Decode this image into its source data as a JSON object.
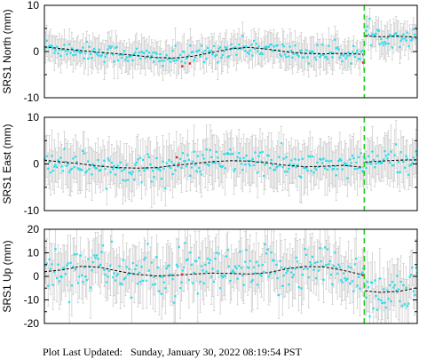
{
  "footer": {
    "label": "Plot Last Updated:",
    "timestamp": "Sunday, January 30, 2022 08:19:54 PST"
  },
  "colors": {
    "data_points": "#22e0f0",
    "outliers": "#dd2222",
    "error_bars": "#c8c8c8",
    "model_line": "#000000",
    "event_marker": "#22cc22"
  },
  "chart_data": [
    {
      "type": "scatter",
      "ylabel": "SRS1 North (mm)",
      "ylim": [
        -10,
        10
      ],
      "yticks": [
        -10,
        0,
        10
      ],
      "grid": false,
      "x_span": [
        0,
        1
      ],
      "event_x": 0.858,
      "series": [
        {
          "role": "model",
          "x": [
            0.0,
            0.05,
            0.1,
            0.15,
            0.2,
            0.25,
            0.3,
            0.35,
            0.4,
            0.45,
            0.5,
            0.55,
            0.6,
            0.65,
            0.7,
            0.75,
            0.8,
            0.855
          ],
          "values": [
            1.0,
            0.6,
            0.2,
            -0.2,
            -0.5,
            -0.9,
            -1.3,
            -1.4,
            -1.0,
            -0.2,
            0.6,
            0.9,
            0.5,
            -0.1,
            -0.4,
            -0.5,
            -0.4,
            -0.6
          ]
        },
        {
          "role": "model",
          "x": [
            0.86,
            0.9,
            0.95,
            1.0
          ],
          "values": [
            3.4,
            3.2,
            3.3,
            3.1
          ]
        }
      ],
      "outliers": [
        {
          "x": 0.37,
          "y": -3.2
        },
        {
          "x": 0.39,
          "y": -2.6
        },
        {
          "x": 0.855,
          "y": -2.4
        }
      ],
      "scatter": {
        "noise_sd": 1.0,
        "error_bar": 3.0
      }
    },
    {
      "type": "scatter",
      "ylabel": "SRS1 East (mm)",
      "ylim": [
        -10,
        10
      ],
      "yticks": [
        -10,
        0,
        10
      ],
      "grid": false,
      "x_span": [
        0,
        1
      ],
      "event_x": 0.858,
      "series": [
        {
          "role": "model",
          "x": [
            0.0,
            0.05,
            0.1,
            0.15,
            0.2,
            0.25,
            0.3,
            0.35,
            0.4,
            0.45,
            0.5,
            0.55,
            0.6,
            0.65,
            0.7,
            0.75,
            0.8,
            0.855
          ],
          "values": [
            0.8,
            0.4,
            0.0,
            -0.5,
            -0.8,
            -0.9,
            -0.8,
            -0.3,
            0.1,
            0.5,
            0.7,
            0.6,
            0.2,
            -0.3,
            -0.6,
            -0.5,
            -0.3,
            -0.7
          ]
        },
        {
          "role": "model",
          "x": [
            0.86,
            0.9,
            0.95,
            1.0
          ],
          "values": [
            0.4,
            0.6,
            0.8,
            0.9
          ]
        }
      ],
      "outliers": [
        {
          "x": 0.355,
          "y": 1.4
        },
        {
          "x": 0.36,
          "y": -0.2
        }
      ],
      "scatter": {
        "noise_sd": 1.4,
        "error_bar": 4.5
      }
    },
    {
      "type": "scatter",
      "ylabel": "SRS1 Up (mm)",
      "ylim": [
        -20,
        20
      ],
      "yticks": [
        -20,
        -10,
        0,
        10,
        20
      ],
      "grid": false,
      "x_span": [
        0,
        1
      ],
      "event_x": 0.858,
      "series": [
        {
          "role": "model",
          "x": [
            0.0,
            0.05,
            0.1,
            0.15,
            0.2,
            0.25,
            0.3,
            0.35,
            0.4,
            0.45,
            0.5,
            0.55,
            0.6,
            0.65,
            0.7,
            0.75,
            0.8,
            0.855
          ],
          "values": [
            2.0,
            2.8,
            4.3,
            3.8,
            2.2,
            0.8,
            0.2,
            0.4,
            1.0,
            1.4,
            1.2,
            1.0,
            1.6,
            3.2,
            4.2,
            4.0,
            2.6,
            0.6
          ]
        },
        {
          "role": "model",
          "x": [
            0.86,
            0.9,
            0.95,
            1.0
          ],
          "values": [
            -6.2,
            -6.8,
            -6.4,
            -4.8
          ]
        }
      ],
      "outliers": [
        {
          "x": 0.37,
          "y": 0.8
        },
        {
          "x": 0.855,
          "y": 0.5
        }
      ],
      "scatter": {
        "noise_sd": 5.0,
        "error_bar": 10.0
      }
    }
  ]
}
